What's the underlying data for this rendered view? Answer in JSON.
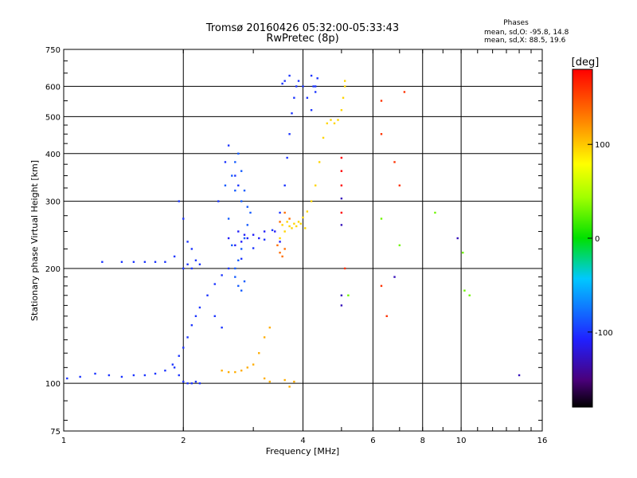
{
  "chart_data": {
    "type": "scatter",
    "title": "Tromsø 20160426 05:32:00-05:33:43",
    "subtitle": "RwPretec (8p)",
    "xlabel": "Frequency [MHz]",
    "ylabel": "Stationary phase Virtual Height [km]",
    "x_scale": "log2",
    "y_scale": "log",
    "xlim": [
      1,
      16
    ],
    "ylim": [
      75,
      750
    ],
    "x_ticks": [
      1,
      2,
      4,
      6,
      8,
      10,
      16
    ],
    "y_ticks": [
      75,
      100,
      200,
      300,
      400,
      500,
      600,
      750
    ],
    "grid": true,
    "stats": {
      "heading": "Phases",
      "line_o": "mean, sd,O: -95.8, 14.8",
      "line_x": "mean, sd,X:  88.5, 19.6"
    },
    "colorbar": {
      "label": "[deg]",
      "min": -180,
      "max": 180,
      "ticks": [
        100,
        0,
        -100
      ]
    },
    "series": [
      {
        "phase_deg": -100,
        "points": [
          [
            1.02,
            103
          ],
          [
            1.1,
            104
          ],
          [
            1.2,
            106
          ],
          [
            1.3,
            105
          ],
          [
            1.4,
            104
          ],
          [
            1.5,
            105
          ],
          [
            1.6,
            105
          ],
          [
            1.7,
            106
          ],
          [
            1.8,
            108
          ],
          [
            1.88,
            112
          ],
          [
            1.95,
            118
          ],
          [
            2.0,
            124
          ],
          [
            2.05,
            132
          ],
          [
            2.1,
            142
          ],
          [
            2.15,
            150
          ],
          [
            2.2,
            158
          ],
          [
            2.3,
            170
          ],
          [
            2.4,
            182
          ],
          [
            2.5,
            192
          ],
          [
            2.6,
            200
          ],
          [
            2.8,
            212
          ],
          [
            3.0,
            226
          ],
          [
            3.2,
            238
          ],
          [
            3.35,
            252
          ],
          [
            3.5,
            280
          ],
          [
            3.6,
            330
          ],
          [
            3.65,
            390
          ],
          [
            3.7,
            450
          ],
          [
            3.75,
            510
          ],
          [
            3.8,
            560
          ],
          [
            3.85,
            600
          ],
          [
            3.9,
            620
          ],
          [
            4.0,
            600
          ],
          [
            4.1,
            560
          ],
          [
            4.2,
            520
          ],
          [
            4.3,
            600
          ],
          [
            4.35,
            630
          ],
          [
            1.25,
            208
          ],
          [
            1.4,
            208
          ],
          [
            1.5,
            208
          ],
          [
            1.6,
            208
          ],
          [
            1.7,
            208
          ],
          [
            1.8,
            208
          ],
          [
            1.9,
            215
          ],
          [
            2.0,
            200
          ],
          [
            2.05,
            205
          ],
          [
            2.1,
            200
          ],
          [
            2.15,
            210
          ],
          [
            2.2,
            205
          ],
          [
            1.95,
            300
          ],
          [
            2.0,
            270
          ],
          [
            2.05,
            235
          ],
          [
            2.1,
            225
          ],
          [
            1.9,
            110
          ],
          [
            1.95,
            105
          ],
          [
            2.0,
            101
          ],
          [
            2.05,
            100
          ],
          [
            2.1,
            100
          ],
          [
            2.15,
            101
          ],
          [
            2.2,
            100
          ],
          [
            2.4,
            150
          ],
          [
            2.5,
            140
          ],
          [
            2.45,
            300
          ],
          [
            2.55,
            380
          ],
          [
            2.6,
            420
          ],
          [
            2.7,
            350
          ],
          [
            2.75,
            330
          ],
          [
            3.6,
            620
          ],
          [
            3.55,
            610
          ],
          [
            3.7,
            640
          ],
          [
            4.2,
            640
          ],
          [
            4.25,
            600
          ],
          [
            4.3,
            580
          ]
        ]
      },
      {
        "phase_deg": -110,
        "points": [
          [
            2.6,
            240
          ],
          [
            2.7,
            230
          ],
          [
            2.8,
            235
          ],
          [
            2.9,
            240
          ],
          [
            3.0,
            245
          ],
          [
            3.1,
            240
          ],
          [
            3.2,
            250
          ],
          [
            3.4,
            250
          ],
          [
            3.5,
            235
          ],
          [
            2.75,
            250
          ],
          [
            2.85,
            245
          ]
        ]
      },
      {
        "phase_deg": -85,
        "points": [
          [
            2.7,
            200
          ],
          [
            2.75,
            210
          ],
          [
            2.8,
            225
          ],
          [
            2.85,
            240
          ],
          [
            2.9,
            260
          ],
          [
            2.95,
            280
          ],
          [
            2.8,
            300
          ],
          [
            2.7,
            320
          ],
          [
            2.65,
            350
          ],
          [
            2.7,
            380
          ],
          [
            2.75,
            400
          ],
          [
            2.8,
            360
          ],
          [
            2.85,
            320
          ],
          [
            2.9,
            290
          ],
          [
            2.7,
            190
          ],
          [
            2.75,
            180
          ],
          [
            2.8,
            175
          ],
          [
            2.85,
            185
          ],
          [
            2.65,
            230
          ],
          [
            2.6,
            270
          ],
          [
            2.55,
            330
          ]
        ]
      },
      {
        "phase_deg": 95,
        "points": [
          [
            3.5,
            240
          ],
          [
            3.6,
            250
          ],
          [
            3.7,
            258
          ],
          [
            3.8,
            262
          ],
          [
            3.9,
            265
          ],
          [
            4.0,
            272
          ],
          [
            4.1,
            282
          ],
          [
            4.2,
            300
          ],
          [
            4.3,
            330
          ],
          [
            4.4,
            380
          ],
          [
            4.5,
            440
          ],
          [
            4.6,
            480
          ],
          [
            4.7,
            490
          ],
          [
            4.8,
            480
          ],
          [
            4.9,
            490
          ],
          [
            5.0,
            520
          ],
          [
            5.05,
            560
          ],
          [
            5.1,
            600
          ],
          [
            5.1,
            620
          ],
          [
            3.55,
            260
          ],
          [
            3.65,
            265
          ],
          [
            3.75,
            255
          ],
          [
            3.85,
            258
          ],
          [
            3.95,
            262
          ],
          [
            4.05,
            255
          ]
        ]
      },
      {
        "phase_deg": 110,
        "points": [
          [
            2.5,
            108
          ],
          [
            2.6,
            107
          ],
          [
            2.7,
            107
          ],
          [
            2.8,
            108
          ],
          [
            2.9,
            110
          ],
          [
            3.0,
            112
          ],
          [
            3.1,
            120
          ],
          [
            3.2,
            132
          ],
          [
            3.3,
            140
          ],
          [
            3.2,
            103
          ],
          [
            3.3,
            101
          ],
          [
            3.6,
            102
          ],
          [
            3.7,
            98
          ],
          [
            3.8,
            101
          ]
        ]
      },
      {
        "phase_deg": 135,
        "points": [
          [
            3.45,
            230
          ],
          [
            3.5,
            220
          ],
          [
            3.55,
            215
          ],
          [
            3.6,
            225
          ],
          [
            3.7,
            270
          ],
          [
            3.6,
            280
          ],
          [
            3.5,
            265
          ]
        ]
      },
      {
        "phase_deg": 160,
        "points": [
          [
            6.3,
            550
          ],
          [
            7.2,
            580
          ],
          [
            6.8,
            380
          ],
          [
            6.3,
            450
          ],
          [
            7.0,
            330
          ],
          [
            5.1,
            200
          ],
          [
            6.3,
            180
          ],
          [
            6.5,
            150
          ]
        ]
      },
      {
        "phase_deg": 30,
        "points": [
          [
            5.2,
            170
          ],
          [
            6.3,
            270
          ],
          [
            7.0,
            230
          ],
          [
            8.6,
            280
          ],
          [
            10.2,
            175
          ],
          [
            10.5,
            170
          ],
          [
            10.1,
            220
          ]
        ]
      },
      {
        "phase_deg": -130,
        "points": [
          [
            14.0,
            105
          ],
          [
            9.8,
            240
          ],
          [
            5.0,
            160
          ],
          [
            5.0,
            170
          ],
          [
            6.8,
            190
          ],
          [
            5.0,
            305
          ],
          [
            5.0,
            260
          ]
        ]
      },
      {
        "phase_deg": 180,
        "points": [
          [
            5.0,
            360
          ],
          [
            5.0,
            390
          ],
          [
            5.0,
            330
          ],
          [
            5.0,
            280
          ]
        ]
      }
    ]
  }
}
